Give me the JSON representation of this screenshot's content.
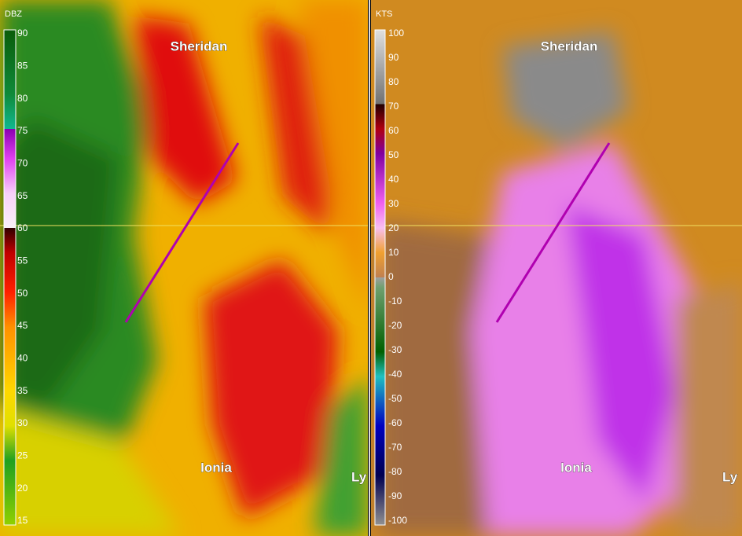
{
  "panels": [
    {
      "unit": "DBZ",
      "scale": [
        90,
        85,
        80,
        75,
        70,
        65,
        60,
        55,
        50,
        45,
        40,
        35,
        30,
        25,
        20,
        15
      ],
      "places": [
        "Sheridan",
        "Ionia",
        "Ly"
      ]
    },
    {
      "unit": "KTS",
      "scale": [
        100,
        90,
        80,
        70,
        60,
        50,
        40,
        30,
        20,
        10,
        0,
        -10,
        -20,
        -30,
        -40,
        -50,
        -60,
        -70,
        -80,
        -90,
        -100
      ],
      "places": [
        "Sheridan",
        "Ionia",
        "Ly"
      ]
    }
  ]
}
